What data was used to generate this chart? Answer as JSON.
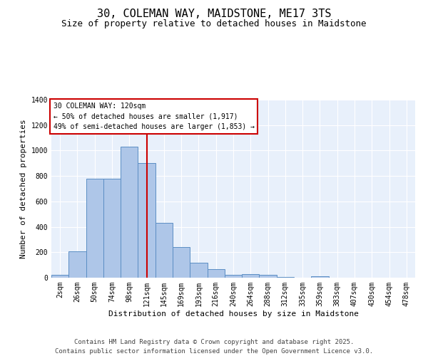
{
  "title": "30, COLEMAN WAY, MAIDSTONE, ME17 3TS",
  "subtitle": "Size of property relative to detached houses in Maidstone",
  "xlabel": "Distribution of detached houses by size in Maidstone",
  "ylabel": "Number of detached properties",
  "bar_labels": [
    "2sqm",
    "26sqm",
    "50sqm",
    "74sqm",
    "98sqm",
    "121sqm",
    "145sqm",
    "169sqm",
    "193sqm",
    "216sqm",
    "240sqm",
    "264sqm",
    "288sqm",
    "312sqm",
    "335sqm",
    "359sqm",
    "383sqm",
    "407sqm",
    "430sqm",
    "454sqm",
    "478sqm"
  ],
  "bar_values": [
    20,
    210,
    780,
    780,
    1030,
    900,
    430,
    240,
    115,
    70,
    25,
    30,
    20,
    8,
    0,
    10,
    0,
    0,
    0,
    0,
    0
  ],
  "bar_color": "#aec6e8",
  "bar_edge_color": "#5b8ec4",
  "bg_color": "#e8f0fb",
  "grid_color": "#ffffff",
  "vline_x": 5.0,
  "vline_color": "#cc0000",
  "annotation_box_text": "30 COLEMAN WAY: 120sqm\n← 50% of detached houses are smaller (1,917)\n49% of semi-detached houses are larger (1,853) →",
  "annotation_box_color": "#cc0000",
  "footnote": "Contains HM Land Registry data © Crown copyright and database right 2025.\nContains public sector information licensed under the Open Government Licence v3.0.",
  "ylim": [
    0,
    1400
  ],
  "yticks": [
    0,
    200,
    400,
    600,
    800,
    1000,
    1200,
    1400
  ],
  "title_fontsize": 11,
  "subtitle_fontsize": 9,
  "axis_label_fontsize": 8,
  "tick_fontsize": 7,
  "footnote_fontsize": 6.5,
  "annot_fontsize": 7
}
